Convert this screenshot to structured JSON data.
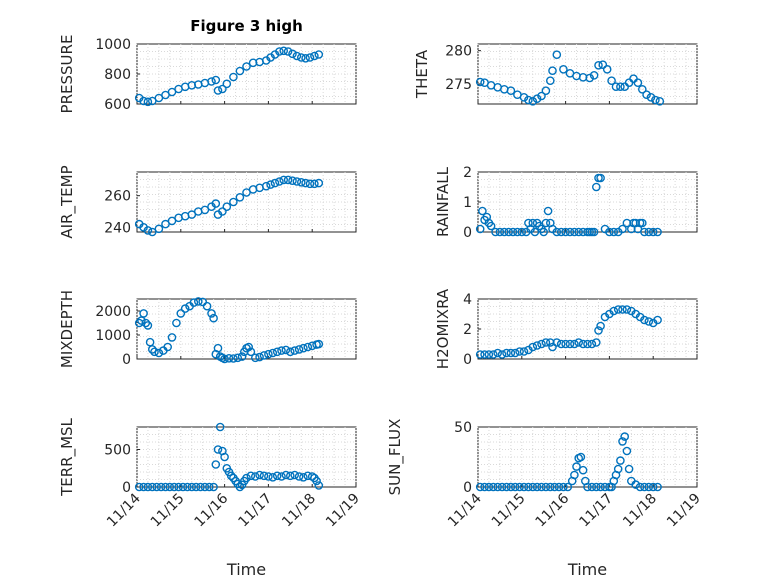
{
  "figure_title": "Figure 3 high",
  "colors": {
    "marker": "#0072bd",
    "axis": "#262626",
    "grid": "#d9d9d9"
  },
  "x_ticks": [
    "11/14",
    "11/15",
    "11/16",
    "11/17",
    "11/18",
    "11/19"
  ],
  "x_label": "Time",
  "chart_data": [
    {
      "type": "scatter",
      "id": "pressure",
      "title": "Figure 3 high",
      "ylabel": "PRESSURE",
      "yticks": [
        "600",
        "800",
        "1000"
      ],
      "ytick_values": [
        600,
        800,
        1000
      ],
      "xlim": [
        14,
        19
      ],
      "ylim": [
        600,
        1000
      ],
      "xlabel": "",
      "x": [
        14.05,
        14.15,
        14.25,
        14.35,
        14.5,
        14.65,
        14.8,
        14.95,
        15.1,
        15.25,
        15.4,
        15.55,
        15.7,
        15.8,
        15.85,
        15.95,
        16.05,
        16.2,
        16.35,
        16.5,
        16.65,
        16.8,
        16.95,
        17.05,
        17.15,
        17.25,
        17.35,
        17.45,
        17.55,
        17.65,
        17.75,
        17.85,
        17.95,
        18.05,
        18.15
      ],
      "y": [
        640,
        620,
        615,
        620,
        640,
        660,
        680,
        700,
        715,
        725,
        730,
        740,
        750,
        760,
        690,
        700,
        735,
        780,
        820,
        850,
        875,
        880,
        890,
        910,
        930,
        950,
        955,
        950,
        935,
        920,
        910,
        905,
        910,
        920,
        930
      ]
    },
    {
      "type": "scatter",
      "id": "theta",
      "ylabel": "THETA",
      "yticks": [
        "275",
        "280"
      ],
      "ytick_values": [
        275,
        280
      ],
      "xlim": [
        14,
        19
      ],
      "ylim": [
        272,
        281
      ],
      "xlabel": "",
      "x": [
        14.05,
        14.15,
        14.3,
        14.45,
        14.6,
        14.75,
        14.9,
        15.05,
        15.15,
        15.25,
        15.35,
        15.45,
        15.55,
        15.65,
        15.7,
        15.8,
        15.95,
        16.1,
        16.25,
        16.4,
        16.55,
        16.65,
        16.75,
        16.85,
        16.95,
        17.05,
        17.15,
        17.25,
        17.35,
        17.45,
        17.55,
        17.65,
        17.75,
        17.85,
        17.95,
        18.05,
        18.15
      ],
      "y": [
        275.3,
        275.2,
        274.8,
        274.5,
        274.2,
        274.0,
        273.4,
        273.0,
        272.6,
        272.4,
        272.8,
        273.2,
        274.0,
        275.5,
        277.0,
        279.4,
        277.2,
        276.6,
        276.2,
        276.0,
        275.9,
        276.3,
        277.8,
        277.9,
        277.2,
        275.5,
        274.6,
        274.6,
        274.6,
        275.2,
        275.8,
        275.2,
        274.2,
        273.4,
        273.0,
        272.6,
        272.4
      ]
    },
    {
      "type": "scatter",
      "id": "air_temp",
      "ylabel": "AIR_TEMP",
      "yticks": [
        "240",
        "260"
      ],
      "ytick_values": [
        240,
        260
      ],
      "xlim": [
        14,
        19
      ],
      "ylim": [
        237,
        275
      ],
      "xlabel": "",
      "x": [
        14.05,
        14.15,
        14.25,
        14.35,
        14.5,
        14.65,
        14.8,
        14.95,
        15.1,
        15.25,
        15.4,
        15.55,
        15.7,
        15.8,
        15.85,
        15.95,
        16.05,
        16.2,
        16.35,
        16.5,
        16.65,
        16.8,
        16.95,
        17.05,
        17.15,
        17.25,
        17.35,
        17.45,
        17.55,
        17.65,
        17.75,
        17.85,
        17.95,
        18.05,
        18.15
      ],
      "y": [
        242,
        240,
        238,
        237,
        239,
        242,
        244,
        246,
        247,
        248,
        250,
        251,
        253,
        255,
        248,
        250,
        253,
        256,
        259,
        262,
        264,
        265,
        266,
        267,
        268,
        269,
        270,
        270,
        269.5,
        269,
        268.5,
        268,
        267.5,
        267.5,
        268
      ]
    },
    {
      "type": "scatter",
      "id": "rainfall",
      "ylabel": "RAINFALL",
      "yticks": [
        "0",
        "1",
        "2"
      ],
      "ytick_values": [
        0,
        1,
        2
      ],
      "xlim": [
        14,
        19
      ],
      "ylim": [
        0,
        2
      ],
      "xlabel": "",
      "x": [
        14.05,
        14.1,
        14.15,
        14.2,
        14.25,
        14.3,
        14.4,
        14.5,
        14.6,
        14.7,
        14.8,
        14.9,
        15.0,
        15.1,
        15.15,
        15.2,
        15.25,
        15.3,
        15.35,
        15.4,
        15.45,
        15.5,
        15.55,
        15.6,
        15.65,
        15.7,
        15.8,
        15.9,
        16.0,
        16.1,
        16.2,
        16.3,
        16.4,
        16.5,
        16.55,
        16.6,
        16.65,
        16.7,
        16.75,
        16.8,
        16.9,
        17.0,
        17.1,
        17.2,
        17.3,
        17.4,
        17.5,
        17.55,
        17.6,
        17.65,
        17.7,
        17.75,
        17.8,
        17.9,
        18.0,
        18.1
      ],
      "y": [
        0.1,
        0.7,
        0.4,
        0.5,
        0.3,
        0.2,
        0.0,
        0.0,
        0.0,
        0.0,
        0.0,
        0.0,
        0.0,
        0.0,
        0.3,
        0.1,
        0.3,
        0.0,
        0.3,
        0.2,
        0.1,
        0.0,
        0.3,
        0.7,
        0.3,
        0.1,
        0.0,
        0.0,
        0.0,
        0.0,
        0.0,
        0.0,
        0.0,
        0.0,
        0.0,
        0.0,
        0.0,
        1.5,
        1.8,
        1.8,
        0.1,
        0.0,
        0.0,
        0.0,
        0.1,
        0.3,
        0.1,
        0.3,
        0.3,
        0.1,
        0.3,
        0.3,
        0.0,
        0.0,
        0.0,
        0.0
      ]
    },
    {
      "type": "scatter",
      "id": "mixdepth",
      "ylabel": "MIXDEPTH",
      "yticks": [
        "0",
        "1000",
        "2000"
      ],
      "ytick_values": [
        0,
        1000,
        2000
      ],
      "xlim": [
        14,
        19
      ],
      "ylim": [
        0,
        2500
      ],
      "xlabel": "",
      "x": [
        14.05,
        14.1,
        14.15,
        14.2,
        14.25,
        14.3,
        14.35,
        14.4,
        14.5,
        14.6,
        14.7,
        14.8,
        14.9,
        15.0,
        15.1,
        15.2,
        15.3,
        15.4,
        15.5,
        15.6,
        15.7,
        15.75,
        15.8,
        15.85,
        15.9,
        15.95,
        16.0,
        16.1,
        16.2,
        16.3,
        16.4,
        16.45,
        16.5,
        16.55,
        16.6,
        16.7,
        16.8,
        16.9,
        17.0,
        17.1,
        17.2,
        17.3,
        17.4,
        17.5,
        17.6,
        17.7,
        17.8,
        17.9,
        18.0,
        18.1,
        18.15
      ],
      "y": [
        1500,
        1600,
        1900,
        1500,
        1400,
        700,
        400,
        300,
        250,
        350,
        500,
        900,
        1500,
        1900,
        2100,
        2200,
        2350,
        2400,
        2380,
        2200,
        1900,
        1700,
        200,
        450,
        100,
        50,
        0,
        30,
        20,
        50,
        100,
        300,
        450,
        500,
        300,
        50,
        80,
        150,
        200,
        250,
        300,
        350,
        380,
        300,
        350,
        400,
        450,
        500,
        550,
        600,
        620
      ]
    },
    {
      "type": "scatter",
      "id": "h2omixra",
      "ylabel": "H2OMIXRA",
      "yticks": [
        "0",
        "2",
        "4"
      ],
      "ytick_values": [
        0,
        2,
        4
      ],
      "xlim": [
        14,
        19
      ],
      "ylim": [
        0,
        4
      ],
      "xlabel": "",
      "x": [
        14.05,
        14.15,
        14.25,
        14.35,
        14.45,
        14.55,
        14.65,
        14.75,
        14.85,
        14.95,
        15.05,
        15.15,
        15.25,
        15.35,
        15.45,
        15.55,
        15.65,
        15.7,
        15.8,
        15.9,
        16.0,
        16.1,
        16.2,
        16.3,
        16.4,
        16.5,
        16.6,
        16.7,
        16.75,
        16.8,
        16.9,
        17.0,
        17.1,
        17.2,
        17.3,
        17.4,
        17.5,
        17.6,
        17.7,
        17.8,
        17.9,
        18.0,
        18.1
      ],
      "y": [
        0.3,
        0.3,
        0.3,
        0.3,
        0.4,
        0.3,
        0.4,
        0.4,
        0.4,
        0.5,
        0.5,
        0.6,
        0.8,
        0.9,
        1.0,
        1.1,
        1.1,
        0.8,
        1.1,
        1.0,
        1.0,
        1.0,
        1.0,
        1.1,
        1.0,
        1.0,
        1.0,
        1.1,
        1.9,
        2.2,
        2.8,
        3.0,
        3.2,
        3.3,
        3.3,
        3.3,
        3.2,
        3.0,
        2.8,
        2.6,
        2.5,
        2.4,
        2.6
      ]
    },
    {
      "type": "scatter",
      "id": "terr_msl",
      "ylabel": "TERR_MSL",
      "yticks": [
        "0",
        "500"
      ],
      "ytick_values": [
        0,
        500
      ],
      "xlim": [
        14,
        19
      ],
      "ylim": [
        0,
        800
      ],
      "xlabel": "Time",
      "x": [
        14.05,
        14.15,
        14.25,
        14.35,
        14.45,
        14.55,
        14.65,
        14.75,
        14.85,
        14.95,
        15.05,
        15.15,
        15.25,
        15.35,
        15.45,
        15.55,
        15.65,
        15.75,
        15.8,
        15.85,
        15.9,
        15.95,
        16.0,
        16.05,
        16.1,
        16.15,
        16.2,
        16.25,
        16.3,
        16.35,
        16.4,
        16.45,
        16.5,
        16.6,
        16.7,
        16.8,
        16.9,
        17.0,
        17.1,
        17.2,
        17.3,
        17.4,
        17.5,
        17.6,
        17.7,
        17.8,
        17.9,
        18.0,
        18.05,
        18.1,
        18.15
      ],
      "y": [
        0,
        0,
        0,
        0,
        0,
        0,
        0,
        0,
        0,
        0,
        0,
        0,
        0,
        0,
        0,
        0,
        0,
        0,
        300,
        500,
        800,
        480,
        400,
        250,
        200,
        150,
        120,
        80,
        40,
        0,
        30,
        80,
        120,
        150,
        140,
        160,
        150,
        140,
        130,
        150,
        140,
        160,
        150,
        160,
        140,
        130,
        150,
        140,
        120,
        80,
        20
      ]
    },
    {
      "type": "scatter",
      "id": "sun_flux",
      "ylabel": "SUN_FLUX",
      "yticks": [
        "0",
        "50"
      ],
      "ytick_values": [
        0,
        50
      ],
      "xlim": [
        14,
        19
      ],
      "ylim": [
        0,
        50
      ],
      "xlabel": "Time",
      "x": [
        14.05,
        14.15,
        14.25,
        14.35,
        14.45,
        14.55,
        14.65,
        14.75,
        14.85,
        14.95,
        15.05,
        15.15,
        15.25,
        15.35,
        15.45,
        15.55,
        15.65,
        15.75,
        15.85,
        15.95,
        16.05,
        16.15,
        16.2,
        16.25,
        16.3,
        16.35,
        16.4,
        16.45,
        16.5,
        16.6,
        16.7,
        16.8,
        16.9,
        17.0,
        17.05,
        17.1,
        17.15,
        17.2,
        17.25,
        17.3,
        17.35,
        17.4,
        17.45,
        17.5,
        17.6,
        17.7,
        17.8,
        17.9,
        18.0,
        18.1
      ],
      "y": [
        0,
        0,
        0,
        0,
        0,
        0,
        0,
        0,
        0,
        0,
        0,
        0,
        0,
        0,
        0,
        0,
        0,
        0,
        0,
        0,
        0,
        5,
        10,
        17,
        24,
        25,
        14,
        5,
        0,
        0,
        0,
        0,
        0,
        0,
        0,
        5,
        10,
        15,
        22,
        38,
        42,
        30,
        15,
        5,
        2,
        0,
        0,
        0,
        0,
        0
      ]
    }
  ]
}
